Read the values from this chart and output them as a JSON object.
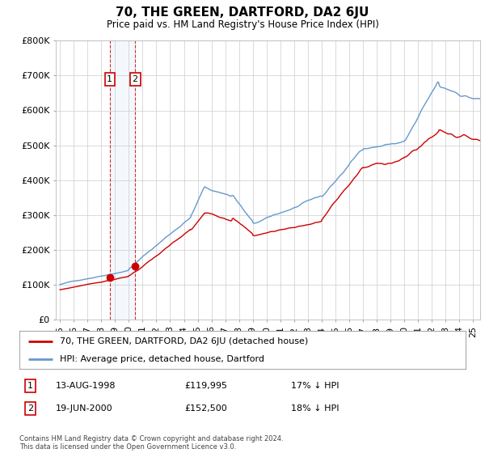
{
  "title": "70, THE GREEN, DARTFORD, DA2 6JU",
  "subtitle": "Price paid vs. HM Land Registry's House Price Index (HPI)",
  "footer": "Contains HM Land Registry data © Crown copyright and database right 2024.\nThis data is licensed under the Open Government Licence v3.0.",
  "legend_line1": "70, THE GREEN, DARTFORD, DA2 6JU (detached house)",
  "legend_line2": "HPI: Average price, detached house, Dartford",
  "transaction1_date": "13-AUG-1998",
  "transaction1_price": "£119,995",
  "transaction1_hpi": "17% ↓ HPI",
  "transaction2_date": "19-JUN-2000",
  "transaction2_price": "£152,500",
  "transaction2_hpi": "18% ↓ HPI",
  "red_line_color": "#cc0000",
  "blue_line_color": "#6699cc",
  "background_color": "#ffffff",
  "grid_color": "#cccccc",
  "transaction1_x": 1998.62,
  "transaction1_y": 119995,
  "transaction2_x": 2000.46,
  "transaction2_y": 152500,
  "ylim": [
    0,
    800000
  ],
  "xlim_start": 1994.7,
  "xlim_end": 2025.5,
  "x_tick_years": [
    1995,
    1996,
    1997,
    1998,
    1999,
    2000,
    2001,
    2002,
    2003,
    2004,
    2005,
    2006,
    2007,
    2008,
    2009,
    2010,
    2011,
    2012,
    2013,
    2014,
    2015,
    2016,
    2017,
    2018,
    2019,
    2020,
    2021,
    2022,
    2023,
    2024,
    2025
  ]
}
